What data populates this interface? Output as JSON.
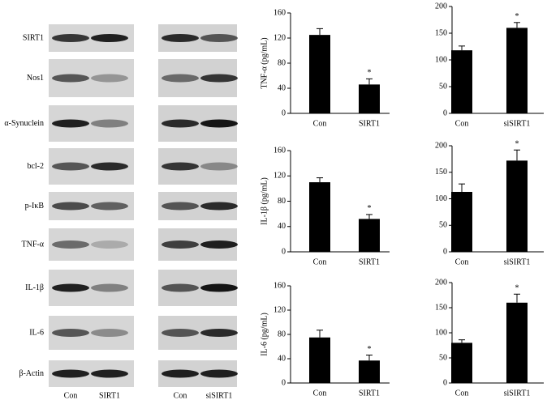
{
  "blots": {
    "rows": [
      "SIRT1",
      "Nos1",
      "α-Synuclein",
      "bcl-2",
      "p-IκB",
      "TNF-α",
      "IL-1β",
      "IL-6",
      "β-Actin"
    ],
    "lanes": [
      "Con",
      "SIRT1",
      "Con",
      "siSIRT1"
    ]
  },
  "chart_data": [
    {
      "type": "bar",
      "ylabel": "TNF-α (pg/mL)",
      "categories": [
        "Con",
        "SIRT1"
      ],
      "values": [
        125,
        46
      ],
      "errors": [
        10,
        9
      ],
      "significance": [
        null,
        "*"
      ],
      "color": "#000000",
      "ylim": [
        0,
        160
      ],
      "yticks": [
        0,
        40,
        80,
        120,
        160
      ]
    },
    {
      "type": "bar",
      "categories": [
        "Con",
        "siSIRT1"
      ],
      "values": [
        118,
        160
      ],
      "errors": [
        8,
        10
      ],
      "significance": [
        null,
        "*"
      ],
      "color": "#000000",
      "ylim": [
        0,
        200
      ],
      "yticks": [
        0,
        50,
        100,
        150,
        200
      ]
    },
    {
      "type": "bar",
      "ylabel": "IL-1β (pg/mL)",
      "categories": [
        "Con",
        "SIRT1"
      ],
      "values": [
        110,
        52
      ],
      "errors": [
        7,
        7
      ],
      "significance": [
        null,
        "*"
      ],
      "color": "#000000",
      "ylim": [
        0,
        160
      ],
      "yticks": [
        0,
        40,
        80,
        120,
        160
      ]
    },
    {
      "type": "bar",
      "categories": [
        "Con",
        "siSIRT1"
      ],
      "values": [
        113,
        172
      ],
      "errors": [
        15,
        20
      ],
      "significance": [
        null,
        "*"
      ],
      "color": "#000000",
      "ylim": [
        0,
        200
      ],
      "yticks": [
        0,
        50,
        100,
        150,
        200
      ]
    },
    {
      "type": "bar",
      "ylabel": "IL-6 (pg/mL)",
      "categories": [
        "Con",
        "SIRT1"
      ],
      "values": [
        75,
        37
      ],
      "errors": [
        12,
        9
      ],
      "significance": [
        null,
        "*"
      ],
      "color": "#000000",
      "ylim": [
        0,
        160
      ],
      "yticks": [
        0,
        40,
        80,
        120,
        160
      ]
    },
    {
      "type": "bar",
      "categories": [
        "Con",
        "siSIRT1"
      ],
      "values": [
        80,
        160
      ],
      "errors": [
        6,
        17
      ],
      "significance": [
        null,
        "*"
      ],
      "color": "#000000",
      "ylim": [
        0,
        200
      ],
      "yticks": [
        0,
        50,
        100,
        150,
        200
      ]
    }
  ]
}
